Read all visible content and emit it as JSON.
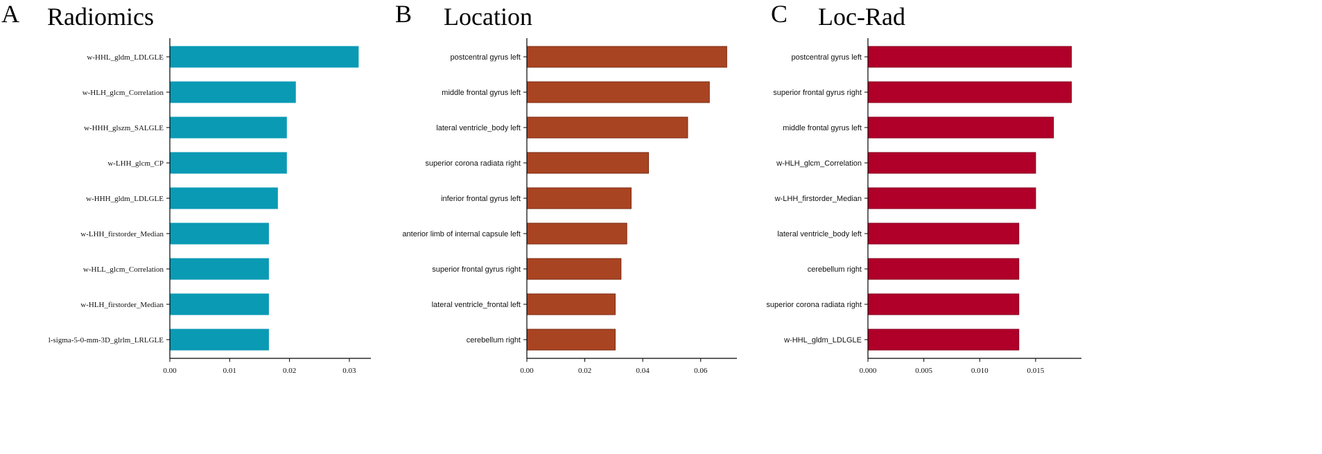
{
  "chart_data": [
    {
      "type": "bar",
      "orientation": "horizontal",
      "panel_letter": "A",
      "title": "Radiomics",
      "categories": [
        "w-HHL_gldm_LDLGLE",
        "w-HLH_glcm_Correlation",
        "w-HHH_glszm_SALGLE",
        "w-LHH_glcm_CP",
        "w-HHH_gldm_LDLGLE",
        "w-LHH_firstorder_Median",
        "w-HLL_glcm_Correlation",
        "w-HLH_firstorder_Median",
        "l-sigma-5-0-mm-3D_glrlm_LRLGLE"
      ],
      "values": [
        0.0315,
        0.021,
        0.0195,
        0.0195,
        0.018,
        0.0165,
        0.0165,
        0.0165,
        0.0165
      ],
      "xlim": [
        0,
        0.0336
      ],
      "xticks": [
        "0.00",
        "0.01",
        "0.02",
        "0.03"
      ],
      "xtick_values": [
        0,
        0.01,
        0.02,
        0.03
      ],
      "color": "#0a9ab4",
      "edge_color": "#0a9ab4",
      "label_style": "serif",
      "xlabel": "",
      "ylabel": ""
    },
    {
      "type": "bar",
      "orientation": "horizontal",
      "panel_letter": "B",
      "title": "Location",
      "categories": [
        "postcentral gyrus left",
        "middle frontal gyrus left",
        "lateral ventricle_body left",
        "superior corona radiata right",
        "inferior frontal gyrus left",
        "anterior limb of internal capsule left",
        "superior frontal gyrus right",
        "lateral ventricle_frontal left",
        "cerebellum right"
      ],
      "values": [
        0.069,
        0.063,
        0.0555,
        0.042,
        0.036,
        0.0345,
        0.0325,
        0.0305,
        0.0305
      ],
      "xlim": [
        0,
        0.0725
      ],
      "xticks": [
        "0.00",
        "0.02",
        "0.04",
        "0.06"
      ],
      "xtick_values": [
        0,
        0.02,
        0.04,
        0.06
      ],
      "color": "#a94422",
      "edge_color": "#7a2a12",
      "label_style": "sans",
      "xlabel": "",
      "ylabel": ""
    },
    {
      "type": "bar",
      "orientation": "horizontal",
      "panel_letter": "C",
      "title": "Loc-Rad",
      "categories": [
        "postcentral gyrus left",
        "superior frontal gyrus right",
        "middle frontal gyrus left",
        "w-HLH_glcm_Correlation",
        "w-LHH_firstorder_Median",
        "lateral ventricle_body left",
        "cerebellum right",
        "superior corona radiata right",
        "w-HHL_gldm_LDLGLE"
      ],
      "values": [
        0.0182,
        0.0182,
        0.0166,
        0.015,
        0.015,
        0.0135,
        0.0135,
        0.0135,
        0.0135
      ],
      "xlim": [
        0,
        0.0191
      ],
      "xticks": [
        "0.000",
        "0.005",
        "0.010",
        "0.015"
      ],
      "xtick_values": [
        0,
        0.005,
        0.01,
        0.015
      ],
      "color": "#b0002a",
      "edge_color": "#8a0020",
      "label_style": "sans",
      "xlabel": "",
      "ylabel": ""
    }
  ]
}
